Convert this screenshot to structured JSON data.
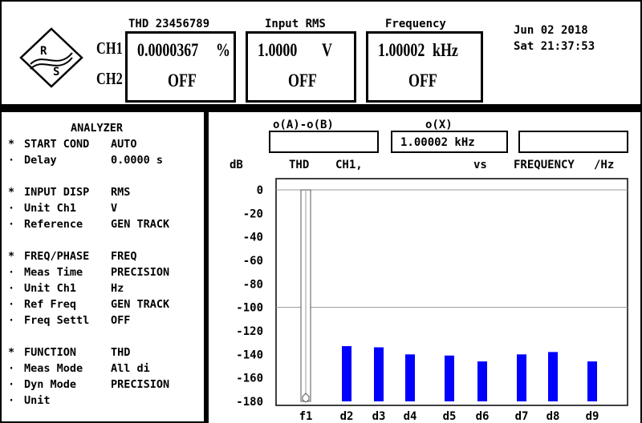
{
  "header": {
    "logo_text": "RS",
    "ch1_label": "CH1",
    "ch2_label": "CH2",
    "thd_title": "THD 23456789",
    "thd_ch1_value": "0.0000367",
    "thd_ch1_unit": "%",
    "thd_ch2_value": "OFF",
    "rms_title": "Input RMS",
    "rms_ch1_value": "1.0000",
    "rms_ch1_unit": "V",
    "rms_ch2_value": "OFF",
    "freq_title": "Frequency",
    "freq_ch1_value": "1.00002",
    "freq_ch1_unit": "kHz",
    "freq_ch2_value": "OFF",
    "date": "Jun 02 2018",
    "time": "Sat 21:37:53"
  },
  "panel": {
    "title": "ANALYZER",
    "lines": [
      {
        "bullet": "*",
        "name": "START COND",
        "value": "AUTO"
      },
      {
        "bullet": "·",
        "name": "Delay",
        "value": "0.0000 s"
      },
      {
        "bullet": "",
        "name": "",
        "value": ""
      },
      {
        "bullet": "*",
        "name": "INPUT DISP",
        "value": "RMS"
      },
      {
        "bullet": "·",
        "name": "Unit Ch1",
        "value": "V"
      },
      {
        "bullet": "·",
        "name": "Reference",
        "value": "GEN TRACK"
      },
      {
        "bullet": "",
        "name": "",
        "value": ""
      },
      {
        "bullet": "*",
        "name": "FREQ/PHASE",
        "value": "FREQ"
      },
      {
        "bullet": "·",
        "name": "Meas Time",
        "value": "PRECISION"
      },
      {
        "bullet": "·",
        "name": "Unit Ch1",
        "value": "Hz"
      },
      {
        "bullet": "·",
        "name": "Ref Freq",
        "value": "GEN TRACK"
      },
      {
        "bullet": "·",
        "name": "Freq Settl",
        "value": "OFF"
      },
      {
        "bullet": "",
        "name": "",
        "value": ""
      },
      {
        "bullet": "*",
        "name": "FUNCTION",
        "value": "THD"
      },
      {
        "bullet": "·",
        "name": "Meas Mode",
        "value": "All di"
      },
      {
        "bullet": "·",
        "name": "Dyn Mode",
        "value": "PRECISION"
      },
      {
        "bullet": "·",
        "name": "Unit",
        "value": ""
      }
    ]
  },
  "graph": {
    "cursor_a_b_label": "o(A)-o(B)",
    "cursor_x_label": "o(X)",
    "cursor_a_b_value": "",
    "cursor_x_value": "1.00002 kHz",
    "cursor_extra_value": "",
    "db_label": "dB",
    "thd_label": "THD",
    "ch_label": "CH1,",
    "vs_label": "vs",
    "freq_label": "FREQUENCY",
    "unit_label": "/Hz"
  },
  "chart_data": {
    "type": "bar",
    "categories": [
      "f1",
      "d2",
      "d3",
      "d4",
      "d5",
      "d6",
      "d7",
      "d8",
      "d9"
    ],
    "values": [
      0,
      -133,
      -134,
      -140,
      -141,
      -146,
      -140,
      -138,
      -146
    ],
    "ylim": [
      -180,
      0
    ],
    "ticks": [
      0,
      -20,
      -40,
      -60,
      -80,
      -100,
      -120,
      -140,
      -160,
      -180
    ],
    "ylabel": "dB",
    "bar_color": "#0000ff",
    "fundamental_color": "#ffffff",
    "grid": true
  }
}
